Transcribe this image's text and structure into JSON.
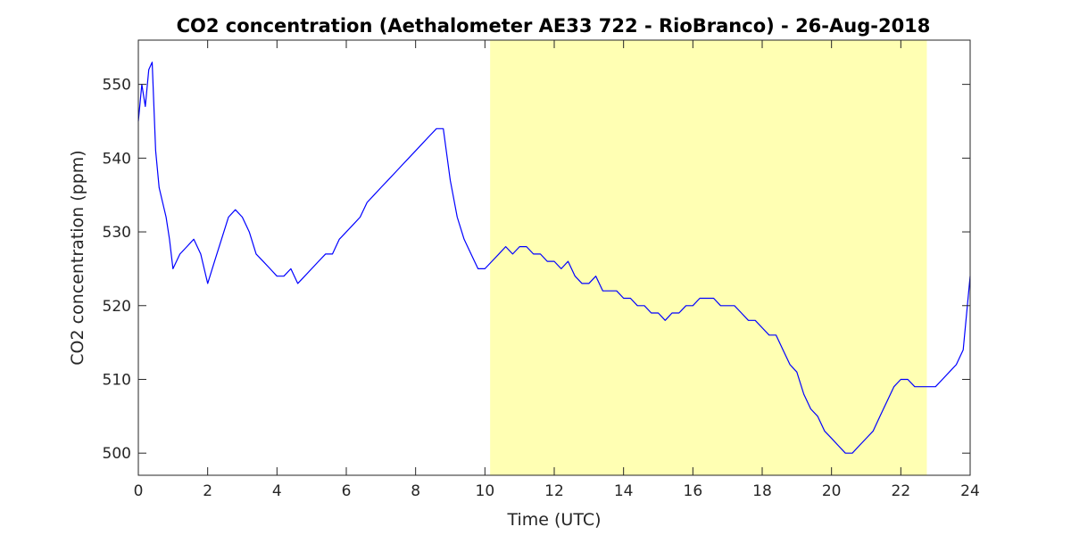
{
  "chart_data": {
    "type": "line",
    "title": "CO2 concentration (Aethalometer AE33 722 - RioBranco) - 26-Aug-2018",
    "xlabel": "Time (UTC)",
    "ylabel": "CO2 concentration (ppm)",
    "xlim": [
      0,
      24
    ],
    "ylim": [
      497,
      556
    ],
    "x_ticks": [
      0,
      2,
      4,
      6,
      8,
      10,
      12,
      14,
      16,
      18,
      20,
      22,
      24
    ],
    "y_ticks": [
      500,
      510,
      520,
      530,
      540,
      550
    ],
    "grid": false,
    "line_color": "#0000ff",
    "highlight": {
      "x_start": 10.15,
      "x_end": 22.75,
      "color": "#ffffb3"
    },
    "series": [
      {
        "x": [
          0,
          0.1,
          0.2,
          0.3,
          0.4,
          0.5,
          0.6,
          0.7,
          0.8,
          0.9,
          1.0,
          1.2,
          1.4,
          1.6,
          1.8,
          2.0,
          2.2,
          2.4,
          2.6,
          2.8,
          3.0,
          3.2,
          3.4,
          3.6,
          3.8,
          4.0,
          4.2,
          4.4,
          4.6,
          4.8,
          5.0,
          5.2,
          5.4,
          5.6,
          5.8,
          6.0,
          6.2,
          6.4,
          6.6,
          6.8,
          7.0,
          7.2,
          7.4,
          7.6,
          7.8,
          8.0,
          8.2,
          8.4,
          8.6,
          8.8,
          9.0,
          9.2,
          9.4,
          9.6,
          9.8,
          10.0,
          10.2,
          10.4,
          10.6,
          10.8,
          11.0,
          11.2,
          11.4,
          11.6,
          11.8,
          12.0,
          12.2,
          12.4,
          12.6,
          12.8,
          13.0,
          13.2,
          13.4,
          13.6,
          13.8,
          14.0,
          14.2,
          14.4,
          14.6,
          14.8,
          15.0,
          15.2,
          15.4,
          15.6,
          15.8,
          16.0,
          16.2,
          16.4,
          16.6,
          16.8,
          17.0,
          17.2,
          17.4,
          17.6,
          17.8,
          18.0,
          18.2,
          18.4,
          18.6,
          18.8,
          19.0,
          19.2,
          19.4,
          19.6,
          19.8,
          20.0,
          20.2,
          20.4,
          20.6,
          20.8,
          21.0,
          21.2,
          21.4,
          21.6,
          21.8,
          22.0,
          22.2,
          22.4,
          22.6,
          22.8,
          23.0,
          23.2,
          23.4,
          23.6,
          23.8,
          24.0
        ],
        "values": [
          545,
          550,
          547,
          552,
          553,
          541,
          536,
          534,
          532,
          529,
          525,
          527,
          528,
          529,
          527,
          523,
          526,
          529,
          532,
          533,
          532,
          530,
          527,
          526,
          525,
          524,
          524,
          525,
          523,
          524,
          525,
          526,
          527,
          527,
          529,
          530,
          531,
          532,
          534,
          535,
          536,
          537,
          538,
          539,
          540,
          541,
          542,
          543,
          544,
          544,
          537,
          532,
          529,
          527,
          525,
          525,
          526,
          527,
          528,
          527,
          528,
          528,
          527,
          527,
          526,
          526,
          525,
          526,
          524,
          523,
          523,
          524,
          522,
          522,
          522,
          521,
          521,
          520,
          520,
          519,
          519,
          518,
          519,
          519,
          520,
          520,
          521,
          521,
          521,
          520,
          520,
          520,
          519,
          518,
          518,
          517,
          516,
          516,
          514,
          512,
          511,
          508,
          506,
          505,
          503,
          502,
          501,
          500,
          500,
          501,
          502,
          503,
          505,
          507,
          509,
          510,
          510,
          509,
          509,
          509,
          509,
          510,
          511,
          512,
          514,
          524
        ]
      }
    ]
  }
}
